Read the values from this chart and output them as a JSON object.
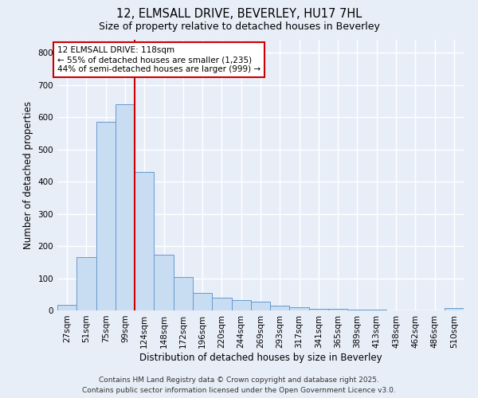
{
  "title_line1": "12, ELMSALL DRIVE, BEVERLEY, HU17 7HL",
  "title_line2": "Size of property relative to detached houses in Beverley",
  "xlabel": "Distribution of detached houses by size in Beverley",
  "ylabel": "Number of detached properties",
  "bar_labels": [
    "27sqm",
    "51sqm",
    "75sqm",
    "99sqm",
    "124sqm",
    "148sqm",
    "172sqm",
    "196sqm",
    "220sqm",
    "244sqm",
    "269sqm",
    "293sqm",
    "317sqm",
    "341sqm",
    "365sqm",
    "389sqm",
    "413sqm",
    "438sqm",
    "462sqm",
    "486sqm",
    "510sqm"
  ],
  "bar_values": [
    18,
    165,
    585,
    640,
    430,
    173,
    103,
    54,
    40,
    33,
    28,
    15,
    10,
    5,
    4,
    2,
    2,
    1,
    0,
    0,
    7
  ],
  "bar_color": "#c9ddf2",
  "bar_edgecolor": "#6699cc",
  "vline_color": "#cc0000",
  "annotation_title": "12 ELMSALL DRIVE: 118sqm",
  "annotation_line2": "← 55% of detached houses are smaller (1,235)",
  "annotation_line3": "44% of semi-detached houses are larger (999) →",
  "annotation_box_edgecolor": "#cc0000",
  "annotation_box_facecolor": "white",
  "ylim": [
    0,
    840
  ],
  "yticks": [
    0,
    100,
    200,
    300,
    400,
    500,
    600,
    700,
    800
  ],
  "background_color": "#e8eef8",
  "plot_bg_color": "#e8eef8",
  "grid_color": "white",
  "footer_line1": "Contains HM Land Registry data © Crown copyright and database right 2025.",
  "footer_line2": "Contains public sector information licensed under the Open Government Licence v3.0.",
  "title_fontsize": 10.5,
  "subtitle_fontsize": 9,
  "axis_label_fontsize": 8.5,
  "tick_fontsize": 7.5,
  "annotation_fontsize": 7.5,
  "footer_fontsize": 6.5
}
